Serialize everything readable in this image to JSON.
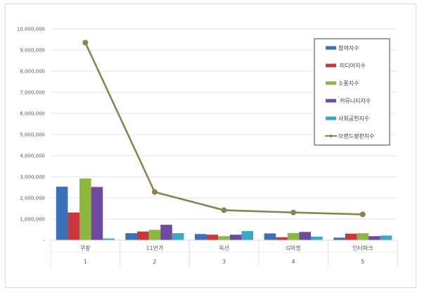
{
  "chart_data": {
    "type": "bar",
    "title": "",
    "xlabel": "",
    "ylabel": "",
    "ylim": [
      0,
      10000000
    ],
    "yticks": [
      0,
      1000000,
      2000000,
      3000000,
      4000000,
      5000000,
      6000000,
      7000000,
      8000000,
      9000000,
      10000000
    ],
    "ytick_labels": [
      "-",
      "1,000,000",
      "2,000,000",
      "3,000,000",
      "4,000,000",
      "5,000,000",
      "6,000,000",
      "7,000,000",
      "8,000,000",
      "9,000,000",
      "10,000,000"
    ],
    "grid": true,
    "legend_position": "right-inside",
    "categories": [
      "쿠팡",
      "11번가",
      "옥션",
      "G마켓",
      "인터파크"
    ],
    "category_ranks": [
      "1",
      "2",
      "3",
      "4",
      "5"
    ],
    "series": [
      {
        "name": "참여지수",
        "type": "bar",
        "color": "#3a6fba",
        "values": [
          2530000,
          330000,
          290000,
          320000,
          120000
        ]
      },
      {
        "name": "미디어지수",
        "type": "bar",
        "color": "#c9373a",
        "values": [
          1310000,
          410000,
          260000,
          140000,
          310000
        ]
      },
      {
        "name": "소통지수",
        "type": "bar",
        "color": "#8db83f",
        "values": [
          2920000,
          490000,
          190000,
          340000,
          330000
        ]
      },
      {
        "name": "커뮤니티지수",
        "type": "bar",
        "color": "#7049a0",
        "values": [
          2520000,
          730000,
          260000,
          390000,
          190000
        ]
      },
      {
        "name": "사회공헌지수",
        "type": "bar",
        "color": "#3aa6c8",
        "values": [
          80000,
          330000,
          430000,
          170000,
          220000
        ]
      },
      {
        "name": "브랜드평판지수",
        "type": "line",
        "color": "#8b8450",
        "values": [
          9350000,
          2280000,
          1420000,
          1310000,
          1220000
        ]
      }
    ]
  }
}
